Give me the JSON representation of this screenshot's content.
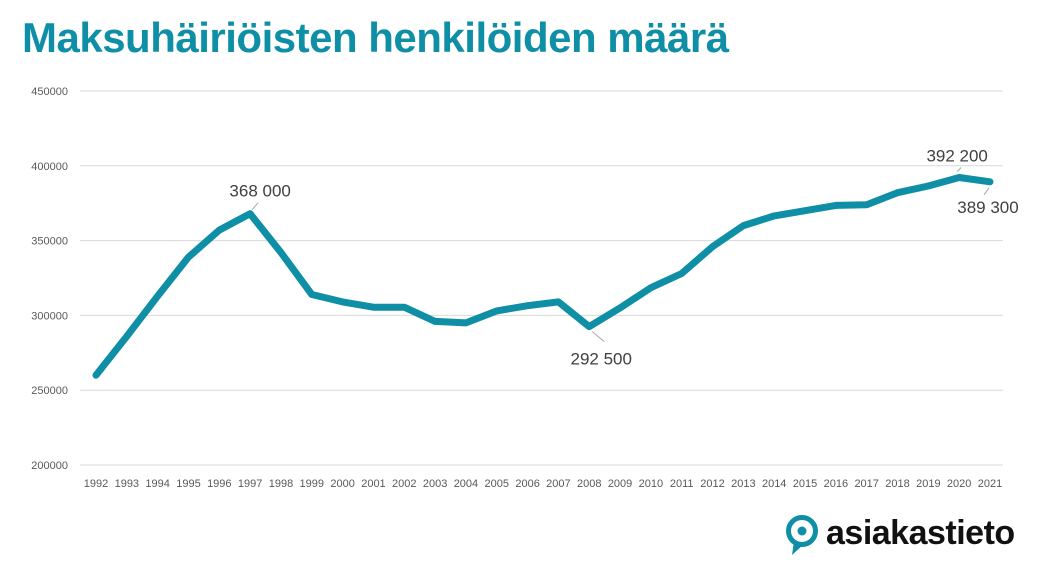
{
  "title": "Maksuhäiriöisten henkilöiden määrä",
  "brand": {
    "name": "asiakastieto",
    "color": "#0e8fa6"
  },
  "chart_data": {
    "type": "line",
    "title": "Maksuhäiriöisten henkilöiden määrä",
    "xlabel": "",
    "ylabel": "",
    "ylim": [
      200000,
      450000
    ],
    "yticks": [
      200000,
      250000,
      300000,
      350000,
      400000,
      450000
    ],
    "grid": true,
    "legend": "none",
    "line_color": "#0e8fa6",
    "categories": [
      "1992",
      "1993",
      "1994",
      "1995",
      "1996",
      "1997",
      "1998",
      "1999",
      "2000",
      "2001",
      "2002",
      "2003",
      "2004",
      "2005",
      "2006",
      "2007",
      "2008",
      "2009",
      "2010",
      "2011",
      "2012",
      "2013",
      "2014",
      "2015",
      "2016",
      "2017",
      "2018",
      "2019",
      "2020",
      "2021"
    ],
    "series": [
      {
        "values": [
          260000,
          286000,
          313000,
          339000,
          357000,
          368000,
          342000,
          314000,
          309000,
          305500,
          305500,
          296000,
          295000,
          303000,
          306500,
          309000,
          292500,
          305000,
          318500,
          328000,
          346000,
          360000,
          366500,
          370000,
          373500,
          374000,
          382000,
          386500,
          392200,
          389300
        ]
      }
    ],
    "annotations": [
      {
        "category": "1997",
        "value": 368000,
        "text": "368 000"
      },
      {
        "category": "2008",
        "value": 292500,
        "text": "292 500"
      },
      {
        "category": "2020",
        "value": 392200,
        "text": "392 200"
      },
      {
        "category": "2021",
        "value": 389300,
        "text": "389 300"
      }
    ]
  }
}
